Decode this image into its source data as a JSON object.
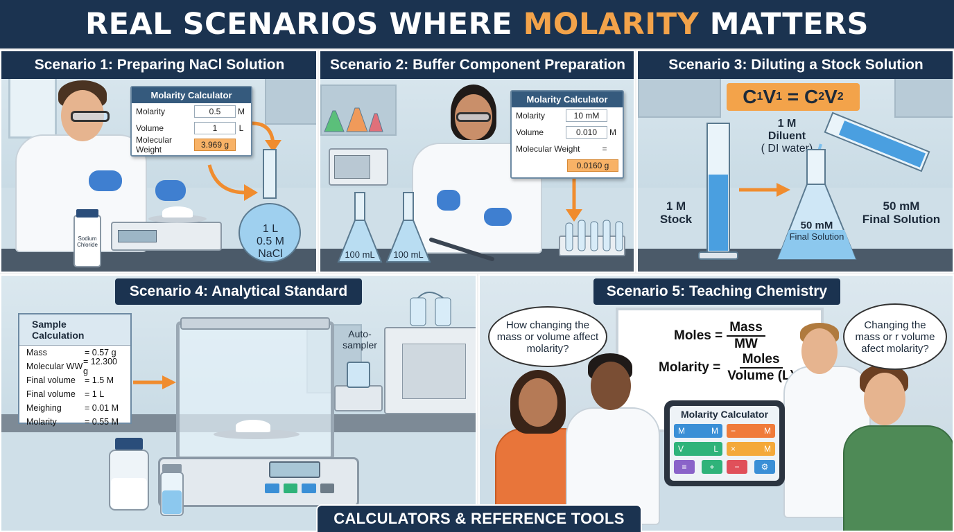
{
  "title": {
    "prefix": "REAL SCENARIOS WHERE ",
    "highlight": "MOLARITY",
    "suffix": " MATTERS"
  },
  "colors": {
    "navy": "#1b3350",
    "accent": "#f3a34a",
    "orange_field": "#f8b266"
  },
  "scenario1": {
    "title": "Scenario 1: Preparing NaCl Solution",
    "calc": {
      "header": "Molarity Calculator",
      "rows": [
        {
          "label": "Molarity",
          "value": "0.5",
          "unit": "M"
        },
        {
          "label": "Volume",
          "value": "1",
          "unit": "L"
        },
        {
          "label": "Molecular Weight",
          "value": "3.969 g",
          "unit": ""
        }
      ]
    },
    "flask_label": [
      "1 L",
      "0.5 M",
      "NaCl"
    ],
    "jar_label": [
      "Sodium",
      "Chloride"
    ]
  },
  "scenario2": {
    "title": "Scenario 2: Buffer Component Preparation",
    "calc": {
      "header": "Molarity Calculator",
      "rows": [
        {
          "label": "Molarity",
          "value": "10 mM",
          "unit": ""
        },
        {
          "label": "Volume",
          "value": "0.010",
          "unit": "M"
        },
        {
          "label": "Molecular Weight",
          "value": "",
          "unit": "="
        },
        {
          "label": "",
          "value": "0.0160 g",
          "unit": ""
        }
      ]
    },
    "flask_left": "100 mL",
    "flask_right": "100 mL"
  },
  "scenario3": {
    "title": "Scenario 3: Diluting a Stock Solution",
    "equation": {
      "c1": "C",
      "s1": "1",
      "v1": "V",
      "s2": "1",
      "eq": " = ",
      "c2": "C",
      "s3": "2",
      "v2": "V",
      "s4": "2"
    },
    "diluent": [
      "1 M",
      "Diluent",
      "( DI water)"
    ],
    "stock": [
      "1 M",
      "Stock"
    ],
    "flask": [
      "50 mM",
      "Final Solution"
    ],
    "right": [
      "50 mM",
      "Final Solution"
    ]
  },
  "scenario4": {
    "title": "Scenario 4: Analytical Standard",
    "sample": {
      "header": "Sample Calculation",
      "rows": [
        {
          "k": "Mass",
          "v": "= 0.57 g"
        },
        {
          "k": "Molecular WW",
          "v": "= 12.300 g"
        },
        {
          "k": "Final volume",
          "v": "= 1.5 M"
        },
        {
          "k": "Final volume",
          "v": "= 1 L"
        },
        {
          "k": "Meighing",
          "v": "= 0.01 M"
        },
        {
          "k": "Molarity",
          "v": "= 0.55 M"
        }
      ]
    },
    "autosampler": [
      "Auto-",
      "sampler"
    ]
  },
  "scenario5": {
    "title": "Scenario 5: Teaching Chemistry",
    "bubble_left": "How changing the mass or volume affect molarity?",
    "bubble_right": "Changing the mass or r volume afect molarity?",
    "formula1": {
      "lhs": "Moles =",
      "num": "Mass",
      "den": "MW"
    },
    "formula2": {
      "lhs": "Molarity =",
      "num": "Moles",
      "den": "Volume (L)"
    },
    "tablet": {
      "title": "Molarity Calculator",
      "keys": [
        {
          "a": "M",
          "b": "M",
          "color": "#3a8fd6"
        },
        {
          "a": "−",
          "b": "M",
          "color": "#f07b3a"
        },
        {
          "a": "V",
          "b": "L",
          "color": "#2fb37a"
        },
        {
          "a": "×",
          "b": "M",
          "color": "#f4a93a"
        },
        {
          "a": "≡",
          "b": "",
          "color": "#8a63c9"
        },
        {
          "a": "+",
          "b": "",
          "color": "#2fb37a"
        },
        {
          "a": "−",
          "b": "",
          "color": "#e0505a"
        },
        {
          "a": "⚙",
          "b": "",
          "color": "#3a8fd6"
        }
      ]
    }
  },
  "footer": "CALCULATORS & REFERENCE TOOLS"
}
